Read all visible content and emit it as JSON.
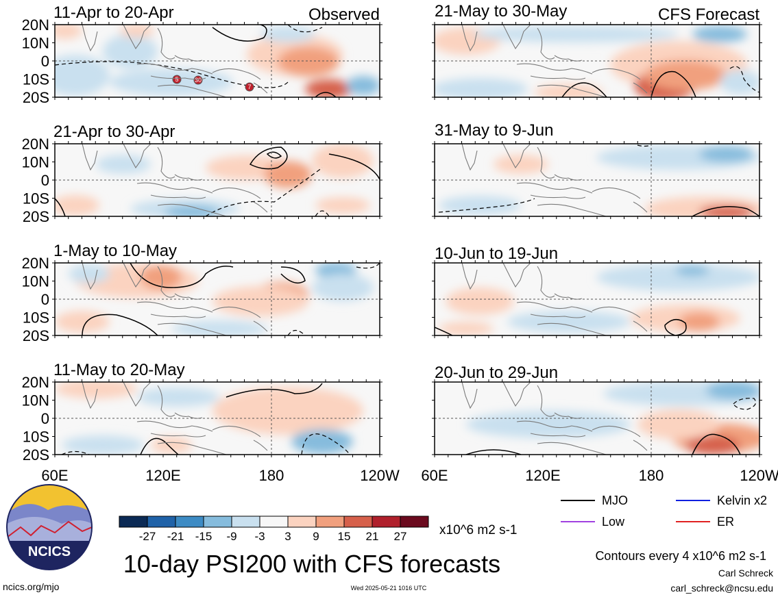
{
  "title": "10-day PSI200 with CFS forecasts",
  "observed_label": "Observed",
  "forecast_label": "CFS Forecast",
  "panels_left": [
    {
      "period": "11-Apr to 20-Apr"
    },
    {
      "period": "21-Apr to 30-Apr"
    },
    {
      "period": "1-May to 10-May"
    },
    {
      "period": "11-May to 20-May"
    }
  ],
  "panels_right": [
    {
      "period": "21-May to 30-May"
    },
    {
      "period": "31-May to 9-Jun"
    },
    {
      "period": "10-Jun to 19-Jun"
    },
    {
      "period": "20-Jun to 29-Jun"
    }
  ],
  "lat_labels": [
    "20N",
    "10N",
    "0",
    "10S",
    "20S"
  ],
  "lon_labels_left": [
    "60E",
    "120E",
    "180",
    "120W"
  ],
  "lon_labels_right": [
    "60E",
    "120E",
    "180",
    "120W"
  ],
  "colorbar": {
    "labels": [
      "-27",
      "-21",
      "-15",
      "-9",
      "-3",
      "3",
      "9",
      "15",
      "21",
      "27"
    ],
    "colors": [
      "#0b2a55",
      "#1f62a8",
      "#3d8bc4",
      "#86bcdd",
      "#c9e0ef",
      "#f7f7f7",
      "#fbd3c0",
      "#f1a07e",
      "#d6604b",
      "#b0202c",
      "#6b0a1e"
    ],
    "units": "x10^6 m2 s-1"
  },
  "legend": [
    {
      "label": "MJO",
      "color": "#000000"
    },
    {
      "label": "Kelvin x2",
      "color": "#1020e0"
    },
    {
      "label": "Low",
      "color": "#a040e0"
    },
    {
      "label": "ER",
      "color": "#e02020"
    }
  ],
  "contour_note": "Contours every 4 x10^6 m2 s-1",
  "author": "Carl Schreck",
  "email": "carl_schreck@ncsu.edu",
  "website": "ncics.org/mjo",
  "timestamp": "Wed 2025-05-21 1016 UTC",
  "logo_text": "NCICS",
  "storm_markers": [
    "5",
    "30",
    "7"
  ]
}
